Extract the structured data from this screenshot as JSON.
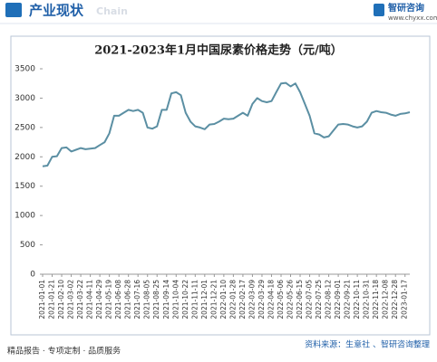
{
  "header": {
    "title": "产业现状",
    "subtitle": "Chain",
    "brand": "智研咨询",
    "url": "www.chyxx.com"
  },
  "footer": {
    "left": "精品报告 · 专项定制 · 品质服务",
    "source": "资料来源：生意社 、智研咨询整理"
  },
  "chart_data": {
    "type": "line",
    "title": "2021-2023年1月中国尿素价格走势（元/吨）",
    "categories": [
      "2021-01-01",
      null,
      "2021-01-21",
      null,
      "2021-02-10",
      null,
      "2021-03-02",
      null,
      "2021-03-22",
      null,
      "2021-04-11",
      null,
      "2021-04-29",
      null,
      "2021-05-19",
      null,
      "2021-06-08",
      null,
      "2021-06-28",
      null,
      "2021-07-16",
      null,
      "2021-08-05",
      null,
      "2021-08-25",
      null,
      "2021-09-14",
      null,
      "2021-10-04",
      null,
      "2021-10-22",
      null,
      "2021-11-11",
      null,
      "2021-12-01",
      null,
      "2021-12-21",
      null,
      "2022-01-10",
      null,
      "2022-01-28",
      null,
      "2022-02-17",
      null,
      "2022-03-09",
      null,
      "2022-03-29",
      null,
      "2022-04-18",
      null,
      "2022-05-06",
      null,
      "2022-05-26",
      null,
      "2022-06-15",
      null,
      "2022-07-05",
      null,
      "2022-07-25",
      null,
      "2022-08-12",
      null,
      "2022-09-01",
      null,
      "2022-09-21",
      null,
      "2022-10-11",
      null,
      "2022-10-31",
      null,
      "2022-11-18",
      null,
      "2022-12-08",
      null,
      "2022-12-28",
      null,
      "2023-01-17",
      null
    ],
    "values": [
      1840,
      1850,
      2000,
      2010,
      2150,
      2160,
      2090,
      2120,
      2150,
      2130,
      2140,
      2150,
      2200,
      2250,
      2400,
      2700,
      2700,
      2750,
      2800,
      2780,
      2800,
      2750,
      2500,
      2480,
      2520,
      2800,
      2800,
      3080,
      3100,
      3050,
      2750,
      2600,
      2520,
      2500,
      2470,
      2550,
      2560,
      2600,
      2650,
      2640,
      2650,
      2700,
      2750,
      2700,
      2900,
      3000,
      2950,
      2930,
      2950,
      3100,
      3250,
      3260,
      3200,
      3250,
      3100,
      2900,
      2700,
      2400,
      2380,
      2330,
      2350,
      2450,
      2550,
      2560,
      2550,
      2520,
      2500,
      2520,
      2600,
      2750,
      2780,
      2760,
      2750,
      2720,
      2700,
      2730,
      2740,
      2760
    ],
    "color": "#5b8fa3",
    "ylim": [
      0,
      3500
    ],
    "yticks": [
      0,
      500,
      1000,
      1500,
      2000,
      2500,
      3000,
      3500
    ],
    "grid": false
  }
}
